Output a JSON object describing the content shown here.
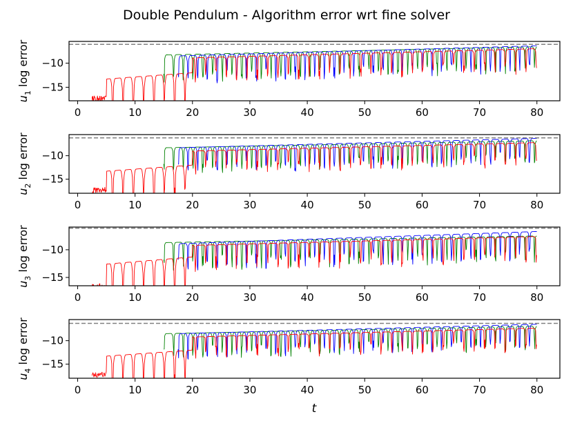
{
  "title": "Double Pendulum - Algorithm error wrt fine solver",
  "colors": {
    "green": "#008000",
    "blue": "#0000ff",
    "red": "#ff0000",
    "reference": "#808080"
  },
  "chart_data": [
    {
      "type": "line",
      "ylabel_var": "u",
      "ylabel_sub": "1",
      "ylabel_rest": " log error",
      "xlim": [
        -1.5,
        84
      ],
      "ylim": [
        -17.8,
        -5.5
      ],
      "xticks": [
        0,
        10,
        20,
        30,
        40,
        50,
        60,
        70,
        80
      ],
      "yticks": [
        -10,
        -15
      ],
      "reference_y": -6.1,
      "series": [
        {
          "color": "green",
          "x_range": [
            15,
            80
          ],
          "floor": [
            -10,
            -7.5
          ],
          "ceil": [
            -8.3,
            -6.6
          ],
          "period": 1.7
        },
        {
          "color": "blue",
          "x_range": [
            17.5,
            80
          ],
          "floor": [
            -10,
            -7.5
          ],
          "ceil": [
            -8.5,
            -6.4
          ],
          "period": 1.7
        },
        {
          "color": "red",
          "x_range": [
            2.5,
            80
          ],
          "floor": [
            -16.5,
            -7.8
          ],
          "ceil": [
            -8.9,
            -7.0
          ],
          "period": 1.8,
          "jump_at": 20
        }
      ]
    },
    {
      "type": "line",
      "ylabel_var": "u",
      "ylabel_sub": "2",
      "ylabel_rest": " log error",
      "xlim": [
        -1.5,
        84
      ],
      "ylim": [
        -18,
        -5.5
      ],
      "xticks": [
        0,
        10,
        20,
        30,
        40,
        50,
        60,
        70,
        80
      ],
      "yticks": [
        -10,
        -15
      ],
      "reference_y": -6.2,
      "series": [
        {
          "color": "green",
          "x_range": [
            15,
            80
          ],
          "floor": [
            -9.5,
            -7.6
          ],
          "ceil": [
            -8.3,
            -6.8
          ],
          "period": 1.7
        },
        {
          "color": "blue",
          "x_range": [
            17.5,
            80
          ],
          "floor": [
            -9.5,
            -7.4
          ],
          "ceil": [
            -8.3,
            -6.3
          ],
          "period": 1.7
        },
        {
          "color": "red",
          "x_range": [
            2.5,
            80
          ],
          "floor": [
            -16.5,
            -8.0
          ],
          "ceil": [
            -9.0,
            -7.2
          ],
          "period": 1.8,
          "jump_at": 20
        }
      ]
    },
    {
      "type": "line",
      "ylabel_var": "u",
      "ylabel_sub": "3",
      "ylabel_rest": " log error",
      "xlim": [
        -1.5,
        84
      ],
      "ylim": [
        -16.5,
        -5.9
      ],
      "xticks": [
        0,
        10,
        20,
        30,
        40,
        50,
        60,
        70,
        80
      ],
      "yticks": [
        -10,
        -15
      ],
      "reference_y": -6.1,
      "series": [
        {
          "color": "green",
          "x_range": [
            15,
            80
          ],
          "floor": [
            -9.5,
            -7.8
          ],
          "ceil": [
            -8.7,
            -7.5
          ],
          "period": 1.7
        },
        {
          "color": "blue",
          "x_range": [
            17.5,
            80
          ],
          "floor": [
            -9.5,
            -7.5
          ],
          "ceil": [
            -8.9,
            -6.7
          ],
          "period": 1.7
        },
        {
          "color": "red",
          "x_range": [
            2.5,
            80
          ],
          "floor": [
            -15.8,
            -8.0
          ],
          "ceil": [
            -9.2,
            -7.6
          ],
          "period": 1.8,
          "jump_at": 20
        }
      ]
    },
    {
      "type": "line",
      "ylabel_var": "u",
      "ylabel_sub": "4",
      "ylabel_rest": " log error",
      "xlim": [
        -1.5,
        84
      ],
      "ylim": [
        -18,
        -5.5
      ],
      "xticks": [
        0,
        10,
        20,
        30,
        40,
        50,
        60,
        70,
        80
      ],
      "yticks": [
        -10,
        -15
      ],
      "reference_y": -6.3,
      "series": [
        {
          "color": "green",
          "x_range": [
            15,
            80
          ],
          "floor": [
            -9.5,
            -7.7
          ],
          "ceil": [
            -8.5,
            -6.9
          ],
          "period": 1.7
        },
        {
          "color": "blue",
          "x_range": [
            17.5,
            80
          ],
          "floor": [
            -9.5,
            -7.4
          ],
          "ceil": [
            -8.5,
            -6.5
          ],
          "period": 1.7
        },
        {
          "color": "red",
          "x_range": [
            2.5,
            80
          ],
          "floor": [
            -16.5,
            -8.0
          ],
          "ceil": [
            -9.2,
            -7.3
          ],
          "period": 1.8,
          "jump_at": 20
        }
      ]
    }
  ],
  "xlabel": "t"
}
